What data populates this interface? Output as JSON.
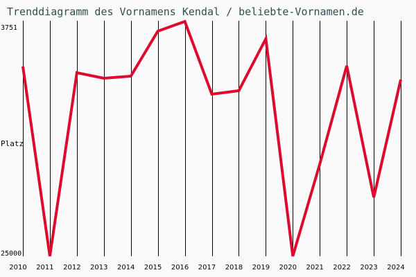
{
  "title": "Trenddiagramm des Vornamens Kendal / beliebte-Vornamen.de",
  "y_axis": {
    "top_label": "3751",
    "middle_label": "Platz",
    "bottom_label": "25000"
  },
  "colors": {
    "line": "#dc0a2d",
    "grid": "#000000",
    "title": "#2f4f4f",
    "background": "#fafafa"
  },
  "chart_data": {
    "type": "line",
    "title": "Trenddiagramm des Vornamens Kendal / beliebte-Vornamen.de",
    "xlabel": "",
    "ylabel": "Platz",
    "ylim": [
      25000,
      3751
    ],
    "y_inverted": true,
    "grid": {
      "vertical": true,
      "horizontal": false
    },
    "legend": null,
    "categories": [
      "2010",
      "2011",
      "2012",
      "2013",
      "2014",
      "2015",
      "2016",
      "2017",
      "2018",
      "2019",
      "2020",
      "2021",
      "2022",
      "2023",
      "2024"
    ],
    "series": [
      {
        "name": "Kendal",
        "values": [
          7875,
          25000,
          8437,
          8937,
          8750,
          4687,
          3812,
          10375,
          10062,
          5375,
          25000,
          16687,
          7812,
          19687,
          9062
        ]
      }
    ]
  }
}
